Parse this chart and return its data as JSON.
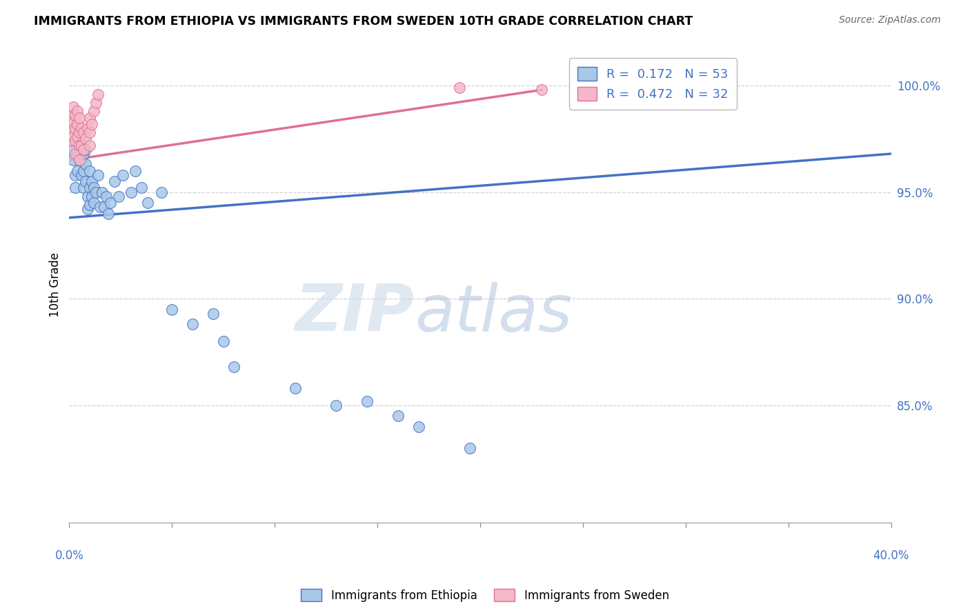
{
  "title": "IMMIGRANTS FROM ETHIOPIA VS IMMIGRANTS FROM SWEDEN 10TH GRADE CORRELATION CHART",
  "source": "Source: ZipAtlas.com",
  "ylabel": "10th Grade",
  "ylabel_right_labels": [
    "100.0%",
    "95.0%",
    "90.0%",
    "85.0%"
  ],
  "ylabel_right_values": [
    1.0,
    0.95,
    0.9,
    0.85
  ],
  "xmin": 0.0,
  "xmax": 0.4,
  "ymin": 0.795,
  "ymax": 1.018,
  "watermark": "ZIPatlas",
  "blue_color": "#a8c8e8",
  "pink_color": "#f4b8c8",
  "line_blue": "#4472c4",
  "line_pink": "#e07090",
  "ethiopia_x": [
    0.001,
    0.002,
    0.003,
    0.003,
    0.004,
    0.004,
    0.005,
    0.005,
    0.006,
    0.006,
    0.006,
    0.007,
    0.007,
    0.007,
    0.008,
    0.008,
    0.008,
    0.009,
    0.009,
    0.01,
    0.01,
    0.01,
    0.011,
    0.011,
    0.012,
    0.012,
    0.013,
    0.014,
    0.015,
    0.016,
    0.017,
    0.018,
    0.019,
    0.02,
    0.022,
    0.024,
    0.026,
    0.03,
    0.032,
    0.035,
    0.038,
    0.045,
    0.05,
    0.06,
    0.07,
    0.075,
    0.08,
    0.11,
    0.13,
    0.16,
    0.17,
    0.145,
    0.195
  ],
  "ethiopia_y": [
    0.97,
    0.965,
    0.958,
    0.952,
    0.968,
    0.96,
    0.975,
    0.965,
    0.972,
    0.965,
    0.958,
    0.968,
    0.96,
    0.952,
    0.97,
    0.963,
    0.955,
    0.948,
    0.942,
    0.96,
    0.952,
    0.944,
    0.955,
    0.948,
    0.952,
    0.945,
    0.95,
    0.958,
    0.943,
    0.95,
    0.943,
    0.948,
    0.94,
    0.945,
    0.955,
    0.948,
    0.958,
    0.95,
    0.96,
    0.952,
    0.945,
    0.95,
    0.895,
    0.888,
    0.893,
    0.88,
    0.868,
    0.858,
    0.85,
    0.845,
    0.84,
    0.852,
    0.83
  ],
  "sweden_x": [
    0.001,
    0.001,
    0.001,
    0.002,
    0.002,
    0.002,
    0.003,
    0.003,
    0.003,
    0.003,
    0.004,
    0.004,
    0.004,
    0.005,
    0.005,
    0.005,
    0.005,
    0.006,
    0.006,
    0.007,
    0.007,
    0.008,
    0.009,
    0.01,
    0.01,
    0.01,
    0.011,
    0.012,
    0.013,
    0.014,
    0.19,
    0.23
  ],
  "sweden_y": [
    0.986,
    0.98,
    0.974,
    0.99,
    0.983,
    0.976,
    0.986,
    0.98,
    0.974,
    0.968,
    0.988,
    0.982,
    0.976,
    0.985,
    0.978,
    0.972,
    0.965,
    0.98,
    0.972,
    0.978,
    0.97,
    0.975,
    0.98,
    0.985,
    0.978,
    0.972,
    0.982,
    0.988,
    0.992,
    0.996,
    0.999,
    0.998
  ],
  "blue_trend_x": [
    0.0,
    0.4
  ],
  "blue_trend_y": [
    0.938,
    0.968
  ],
  "pink_trend_x": [
    0.0,
    0.23
  ],
  "pink_trend_y": [
    0.965,
    0.998
  ],
  "grid_color": "#d0d0d0",
  "grid_linestyle": "--"
}
